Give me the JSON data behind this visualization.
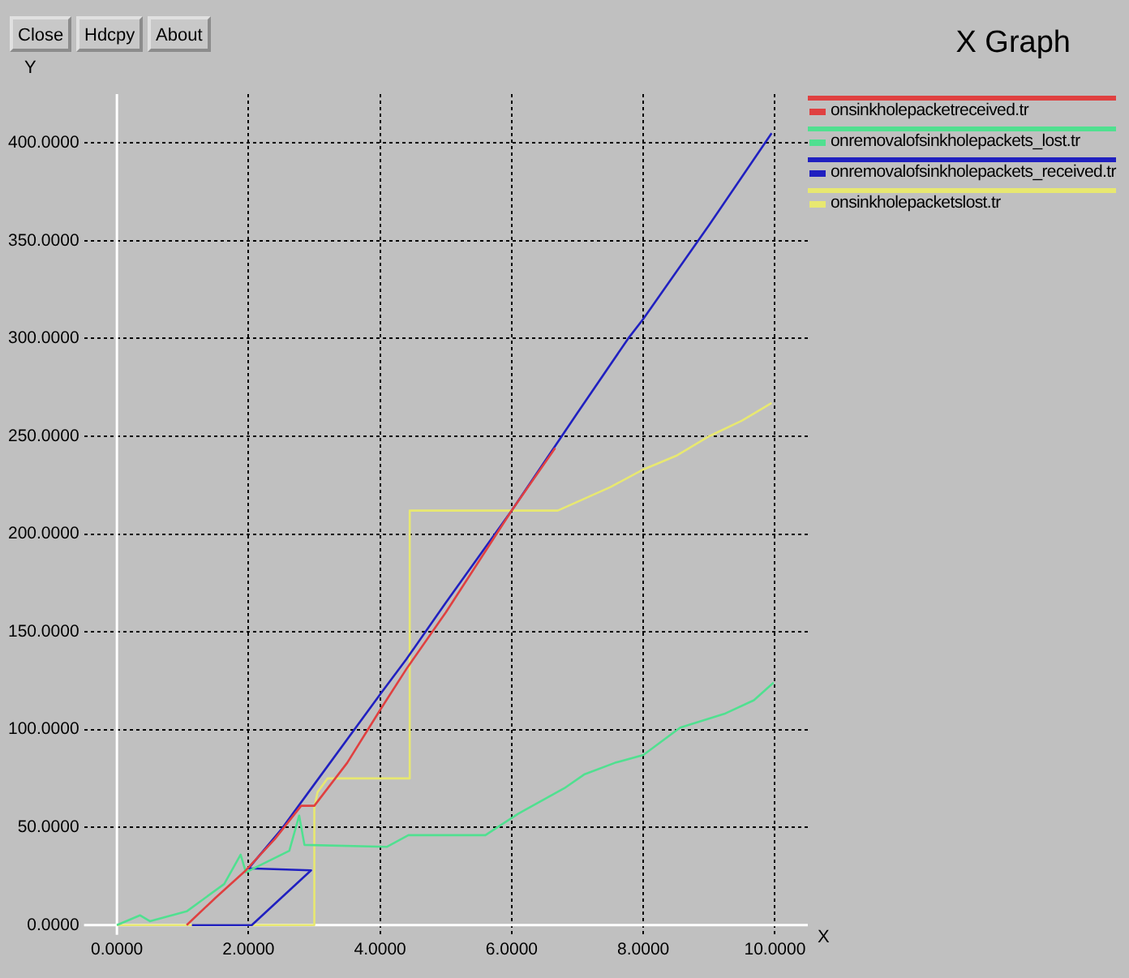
{
  "chart_data": {
    "type": "line",
    "title": "X Graph",
    "xlabel": "X",
    "ylabel": "Y",
    "annotations": [
      "Close",
      "Hdcpy",
      "About"
    ],
    "xlim": [
      -0.5,
      10.5
    ],
    "ylim": [
      -5,
      425
    ],
    "xticks": [
      {
        "value": 0,
        "label": "0.0000"
      },
      {
        "value": 2,
        "label": "2.0000"
      },
      {
        "value": 4,
        "label": "4.0000"
      },
      {
        "value": 6,
        "label": "6.0000"
      },
      {
        "value": 8,
        "label": "8.0000"
      },
      {
        "value": 10,
        "label": "10.0000"
      }
    ],
    "yticks": [
      {
        "value": 0,
        "label": "0.0000"
      },
      {
        "value": 50,
        "label": "50.0000"
      },
      {
        "value": 100,
        "label": "100.0000"
      },
      {
        "value": 150,
        "label": "150.0000"
      },
      {
        "value": 200,
        "label": "200.0000"
      },
      {
        "value": 250,
        "label": "250.0000"
      },
      {
        "value": 300,
        "label": "300.0000"
      },
      {
        "value": 350,
        "label": "350.0000"
      },
      {
        "value": 400,
        "label": "400.0000"
      }
    ],
    "grid": true,
    "legend": "top right",
    "marker": "none",
    "line_style": "solid",
    "series": [
      {
        "name": "onsinkholepacketreceived.tr",
        "color": "#e04040",
        "x": [
          1.06,
          1.5,
          1.96,
          2.4,
          2.8,
          3.0,
          3.5,
          4.0,
          4.4,
          5.0,
          5.5,
          6.0,
          6.66
        ],
        "values": [
          0,
          14,
          28,
          44,
          61,
          61,
          83,
          110,
          131,
          160,
          186,
          212,
          244
        ]
      },
      {
        "name": "onremovalofsinkholepackets_lost.tr",
        "color": "#50e090",
        "x": [
          0,
          0.35,
          0.5,
          1.06,
          1.63,
          1.88,
          1.96,
          2.62,
          2.77,
          2.85,
          4.1,
          4.43,
          5.6,
          6.1,
          6.8,
          7.1,
          7.57,
          8.0,
          8.56,
          9.23,
          9.68,
          9.98
        ],
        "values": [
          0,
          5,
          2,
          7,
          21,
          36,
          27,
          38,
          56,
          41,
          40,
          46,
          46,
          57,
          70,
          77,
          83,
          87,
          101,
          108,
          115,
          124
        ]
      },
      {
        "name": "onremovalofsinkholepackets_received.tr",
        "color": "#2020c0",
        "x": [
          1.14,
          2.05,
          2.95,
          2.0,
          2.5,
          3.0,
          4.0,
          4.4,
          5.0,
          6.0,
          7.0,
          7.77,
          8.0,
          9.0,
          9.95
        ],
        "values": [
          0,
          0,
          28,
          29,
          49,
          72,
          118,
          136,
          165,
          212,
          262,
          300,
          310,
          358,
          405
        ]
      },
      {
        "name": "onsinkholepacketslost.tr",
        "color": "#e8e870",
        "x": [
          0,
          3.0,
          3.0,
          3.05,
          3.2,
          4.4,
          4.45,
          4.45,
          6.7,
          7.5,
          8.0,
          8.5,
          9.0,
          9.5,
          9.95
        ],
        "values": [
          0,
          0,
          60,
          68,
          75,
          75,
          75,
          212,
          212,
          224,
          233,
          240,
          250,
          258,
          267
        ]
      }
    ]
  }
}
